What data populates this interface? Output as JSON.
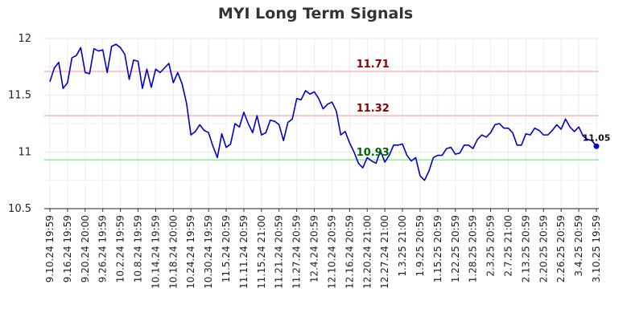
{
  "chart_data": {
    "type": "line",
    "title": "MYI Long Term Signals",
    "xlabel": "",
    "ylabel": "",
    "ylim": [
      10.5,
      12
    ],
    "yticks": [
      "10.5",
      "11",
      "11.5",
      "12"
    ],
    "grid": true,
    "x_tick_labels": [
      "9.10.24 19:59",
      "9.16.24 19:59",
      "9.20.24 20:00",
      "9.26.24 19:59",
      "10.2.24 19:59",
      "10.8.24 19:59",
      "10.14.24 19:59",
      "10.18.24 20:00",
      "10.24.24 19:59",
      "10.30.24 19:59",
      "11.5.24 20:59",
      "11.11.24 20:59",
      "11.15.24 21:00",
      "11.21.24 20:59",
      "11.27.24 20:59",
      "12.4.24 20:59",
      "12.10.24 20:59",
      "12.16.24 20:59",
      "12.20.24 21:00",
      "12.27.24 21:00",
      "1.3.25 21:00",
      "1.9.25 20:59",
      "1.15.25 20:59",
      "1.22.25 20:59",
      "1.28.25 20:59",
      "2.3.25 20:59",
      "2.7.25 21:00",
      "2.13.25 20:59",
      "2.20.25 20:59",
      "2.26.25 20:59",
      "3.4.25 20:59",
      "3.10.25 19:59"
    ],
    "series": [
      {
        "color": "#0000cc",
        "values": [
          11.62,
          11.74,
          11.79,
          11.56,
          11.61,
          11.83,
          11.85,
          11.92,
          11.7,
          11.69,
          11.91,
          11.89,
          11.9,
          11.7,
          11.93,
          11.95,
          11.92,
          11.86,
          11.64,
          11.81,
          11.8,
          11.56,
          11.73,
          11.57,
          11.73,
          11.7,
          11.74,
          11.78,
          11.61,
          11.7,
          11.6,
          11.43,
          11.15,
          11.18,
          11.24,
          11.19,
          11.17,
          11.05,
          10.95,
          11.16,
          11.04,
          11.07,
          11.25,
          11.22,
          11.35,
          11.25,
          11.17,
          11.32,
          11.15,
          11.17,
          11.28,
          11.27,
          11.24,
          11.1,
          11.26,
          11.29,
          11.47,
          11.46,
          11.54,
          11.51,
          11.53,
          11.47,
          11.38,
          11.42,
          11.44,
          11.36,
          11.15,
          11.18,
          11.08,
          11.0,
          10.9,
          10.86,
          10.95,
          10.92,
          10.9,
          11.01,
          10.91,
          10.97,
          11.06,
          11.06,
          11.07,
          10.97,
          10.92,
          10.95,
          10.79,
          10.75,
          10.83,
          10.95,
          10.97,
          10.97,
          11.03,
          11.04,
          10.98,
          10.99,
          11.06,
          11.06,
          11.03,
          11.11,
          11.15,
          11.13,
          11.17,
          11.24,
          11.25,
          11.21,
          11.21,
          11.17,
          11.06,
          11.06,
          11.16,
          11.15,
          11.21,
          11.19,
          11.15,
          11.15,
          11.19,
          11.24,
          11.2,
          11.29,
          11.22,
          11.18,
          11.22,
          11.14,
          11.11,
          11.1,
          11.05
        ]
      }
    ],
    "levels": [
      {
        "label": "11.71",
        "value": 11.71,
        "line_color": "#ffb3b3",
        "text_color": "#8b0000",
        "label_x_frac": 0.52
      },
      {
        "label": "11.32",
        "value": 11.32,
        "line_color": "#ffb3b3",
        "text_color": "#8b0000",
        "label_x_frac": 0.52
      },
      {
        "label": "10.93",
        "value": 10.93,
        "line_color": "#90ee90",
        "text_color": "#006400",
        "label_x_frac": 0.52
      }
    ],
    "last_point": {
      "label": "11.05",
      "value": 11.05,
      "color": "#0000cc"
    }
  }
}
